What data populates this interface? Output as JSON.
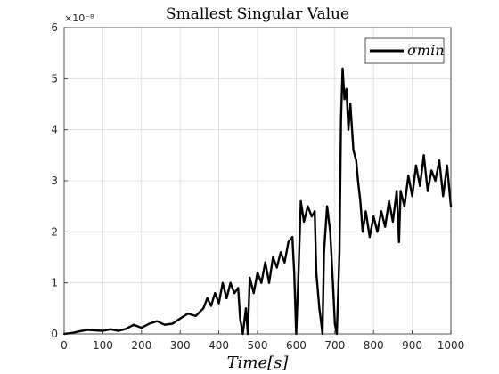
{
  "chart_data": {
    "type": "line",
    "title": "Smallest Singular Value",
    "xlabel": "Time[s]",
    "ylabel": "",
    "xlim": [
      0,
      1000
    ],
    "ylim": [
      0,
      6
    ],
    "y_exponent": "×10⁻⁸",
    "x_ticks": [
      "0",
      "100",
      "200",
      "300",
      "400",
      "500",
      "600",
      "700",
      "800",
      "900",
      "1000"
    ],
    "y_ticks": [
      "0",
      "1",
      "2",
      "3",
      "4",
      "5",
      "6"
    ],
    "grid": true,
    "legend_position": "top-right",
    "series": [
      {
        "name": "σmin",
        "color": "#000000",
        "points": [
          [
            0,
            0.0
          ],
          [
            20,
            0.02
          ],
          [
            40,
            0.05
          ],
          [
            60,
            0.08
          ],
          [
            80,
            0.07
          ],
          [
            100,
            0.06
          ],
          [
            120,
            0.09
          ],
          [
            140,
            0.06
          ],
          [
            160,
            0.1
          ],
          [
            180,
            0.18
          ],
          [
            200,
            0.12
          ],
          [
            220,
            0.2
          ],
          [
            240,
            0.25
          ],
          [
            260,
            0.18
          ],
          [
            280,
            0.2
          ],
          [
            300,
            0.3
          ],
          [
            320,
            0.4
          ],
          [
            340,
            0.35
          ],
          [
            360,
            0.5
          ],
          [
            370,
            0.7
          ],
          [
            380,
            0.55
          ],
          [
            390,
            0.8
          ],
          [
            400,
            0.6
          ],
          [
            410,
            1.0
          ],
          [
            420,
            0.7
          ],
          [
            430,
            1.0
          ],
          [
            440,
            0.8
          ],
          [
            450,
            0.9
          ],
          [
            455,
            0.3
          ],
          [
            462,
            0.0
          ],
          [
            470,
            0.5
          ],
          [
            475,
            0.0
          ],
          [
            480,
            1.1
          ],
          [
            490,
            0.8
          ],
          [
            500,
            1.2
          ],
          [
            510,
            1.0
          ],
          [
            520,
            1.4
          ],
          [
            530,
            1.0
          ],
          [
            540,
            1.5
          ],
          [
            550,
            1.3
          ],
          [
            560,
            1.6
          ],
          [
            570,
            1.4
          ],
          [
            580,
            1.8
          ],
          [
            590,
            1.9
          ],
          [
            595,
            1.2
          ],
          [
            600,
            0.0
          ],
          [
            606,
            1.2
          ],
          [
            612,
            2.6
          ],
          [
            620,
            2.2
          ],
          [
            630,
            2.5
          ],
          [
            640,
            2.3
          ],
          [
            648,
            2.4
          ],
          [
            652,
            1.2
          ],
          [
            660,
            0.5
          ],
          [
            665,
            0.2
          ],
          [
            668,
            0.0
          ],
          [
            672,
            1.6
          ],
          [
            680,
            2.5
          ],
          [
            688,
            2.0
          ],
          [
            695,
            1.0
          ],
          [
            700,
            0.2
          ],
          [
            705,
            0.0
          ],
          [
            712,
            1.6
          ],
          [
            716,
            4.2
          ],
          [
            720,
            5.2
          ],
          [
            725,
            4.6
          ],
          [
            730,
            4.8
          ],
          [
            735,
            4.0
          ],
          [
            740,
            4.5
          ],
          [
            748,
            3.6
          ],
          [
            755,
            3.4
          ],
          [
            760,
            3.0
          ],
          [
            766,
            2.6
          ],
          [
            772,
            2.0
          ],
          [
            780,
            2.4
          ],
          [
            790,
            1.9
          ],
          [
            800,
            2.3
          ],
          [
            810,
            2.0
          ],
          [
            820,
            2.4
          ],
          [
            830,
            2.1
          ],
          [
            840,
            2.6
          ],
          [
            850,
            2.2
          ],
          [
            860,
            2.8
          ],
          [
            866,
            1.8
          ],
          [
            870,
            2.8
          ],
          [
            880,
            2.5
          ],
          [
            890,
            3.1
          ],
          [
            900,
            2.7
          ],
          [
            910,
            3.3
          ],
          [
            920,
            2.9
          ],
          [
            930,
            3.5
          ],
          [
            940,
            2.8
          ],
          [
            950,
            3.2
          ],
          [
            960,
            3.0
          ],
          [
            970,
            3.4
          ],
          [
            980,
            2.7
          ],
          [
            990,
            3.3
          ],
          [
            1000,
            2.5
          ]
        ]
      }
    ]
  }
}
